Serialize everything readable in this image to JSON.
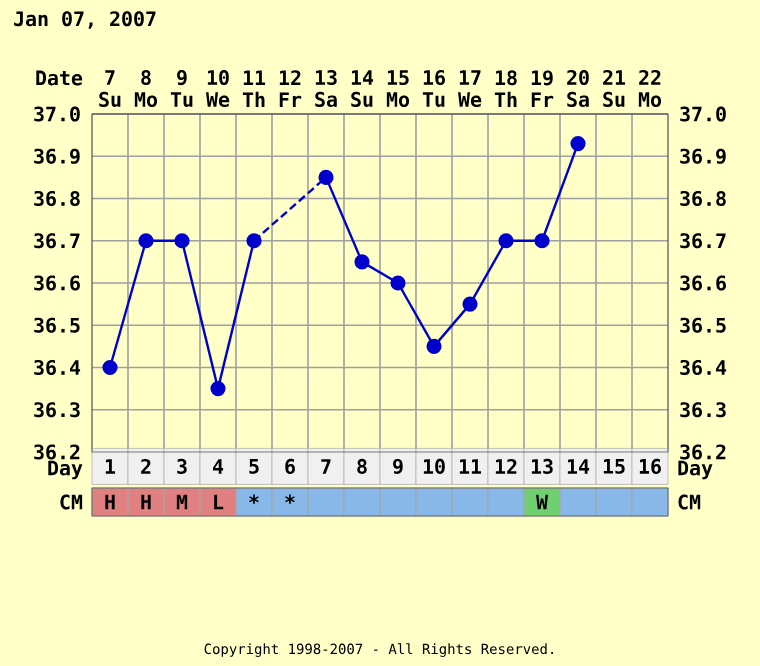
{
  "chart_data": [
    {
      "type": "line",
      "title": "Jan 07, 2007",
      "xlabel": "Day",
      "x2label": "Date",
      "annotations": [
        "Copyright 1998-2007 - All Rights Reserved."
      ],
      "x": [
        1,
        2,
        3,
        4,
        5,
        6,
        7,
        8,
        9,
        10,
        11,
        12,
        13,
        14
      ],
      "xlim": [
        0.5,
        16.5
      ],
      "xticks": [
        1,
        2,
        3,
        4,
        5,
        6,
        7,
        8,
        9,
        10,
        11,
        12,
        13,
        14,
        15,
        16
      ],
      "x2lim": [
        6.5,
        22.5
      ],
      "x2ticks": [
        {
          "value": 7,
          "label": "7 Su"
        },
        {
          "value": 8,
          "label": "8 Mo"
        },
        {
          "value": 9,
          "label": "9 Tu"
        },
        {
          "value": 10,
          "label": "10 We"
        },
        {
          "value": 11,
          "label": "11 Th"
        },
        {
          "value": 12,
          "label": "12 Fr"
        },
        {
          "value": 13,
          "label": "13 Sa"
        },
        {
          "value": 14,
          "label": "14 Su"
        },
        {
          "value": 15,
          "label": "15 Mo"
        },
        {
          "value": 16,
          "label": "16 Tu"
        },
        {
          "value": 17,
          "label": "17 We"
        },
        {
          "value": 18,
          "label": "18 Th"
        },
        {
          "value": 19,
          "label": "19 Fr"
        },
        {
          "value": 20,
          "label": "20 Sa"
        },
        {
          "value": 21,
          "label": "21 Su"
        },
        {
          "value": 22,
          "label": "22 Mo"
        }
      ],
      "ylim": [
        36.2,
        37.0
      ],
      "yticks": [
        36.2,
        36.3,
        36.4,
        36.5,
        36.6,
        36.7,
        36.8,
        36.9,
        {
          "value": 37,
          "label": "37.0"
        }
      ],
      "y2lim": [
        36.2,
        37.0
      ],
      "y2ticks": [
        36.2,
        36.3,
        36.4,
        36.5,
        36.6,
        36.7,
        36.8,
        36.9,
        {
          "value": 37,
          "label": "37.0"
        }
      ],
      "grid": true,
      "series": [
        {
          "color": "#0000cc",
          "marker": "circle",
          "line_style": "solid",
          "values": [
            36.4,
            36.7,
            36.7,
            36.35,
            36.7,
            null,
            36.85,
            36.65,
            36.6,
            36.45,
            36.55,
            36.7,
            36.7,
            36.93
          ]
        },
        {
          "color": "#0000cd",
          "marker": "none",
          "line_style": "dashed",
          "x": [
            5,
            7
          ],
          "values": [
            36.7,
            36.85
          ]
        }
      ]
    },
    {
      "type": "other",
      "ylabel": "CM",
      "categories": [
        "H",
        "H",
        "M",
        "L",
        "*",
        "*",
        null,
        null,
        null,
        null,
        null,
        null,
        "W",
        null,
        null,
        null
      ],
      "colors": [
        "#e08080",
        "#e08080",
        "#e08080",
        "#e08080",
        "#88b8e8",
        "#88b8e8",
        "#88b8e8",
        "#88b8e8",
        "#88b8e8",
        "#88b8e8",
        "#88b8e8",
        "#88b8e8",
        "#70d070",
        "#88b8e8",
        "#88b8e8",
        "#88b8e8"
      ]
    }
  ]
}
